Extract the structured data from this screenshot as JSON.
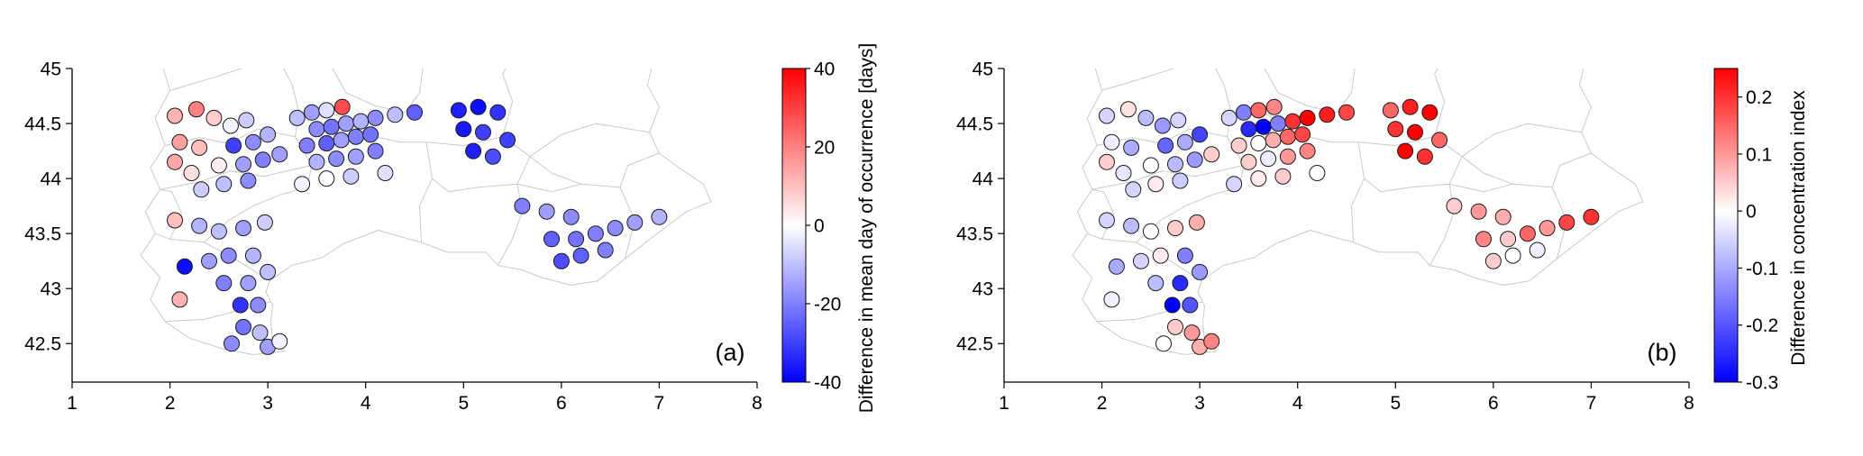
{
  "colors": {
    "negative": "#0000ff",
    "zero": "#ffffff",
    "positive": "#ff0000",
    "map_outline": "#c9c9c9",
    "axis": "#000000",
    "point_edge": "#1a1a1a"
  },
  "chart_data": {
    "type": "scatter",
    "title": "",
    "panels": [
      {
        "id": "a",
        "label": "(a)",
        "xlim": [
          1,
          8
        ],
        "ylim": [
          42.15,
          45.0
        ],
        "xticks": [
          "1",
          "2",
          "3",
          "4",
          "5",
          "6",
          "7",
          "8"
        ],
        "xtick_values": [
          1,
          2,
          3,
          4,
          5,
          6,
          7,
          8
        ],
        "yticks": [
          "42.5",
          "43",
          "43.5",
          "44",
          "44.5",
          "45"
        ],
        "ytick_values": [
          42.5,
          43,
          43.5,
          44,
          44.5,
          45
        ],
        "value_key": "a",
        "colorbar": {
          "label": "Difference in mean day of occurrence [days]",
          "tick_labels": [
            "-40",
            "-20",
            "0",
            "20",
            "40"
          ],
          "tick_values": [
            -40,
            -20,
            0,
            20,
            40
          ],
          "min": -40,
          "max": 40
        }
      },
      {
        "id": "b",
        "label": "(b)",
        "xlim": [
          1,
          8
        ],
        "ylim": [
          42.15,
          45.0
        ],
        "xticks": [
          "1",
          "2",
          "3",
          "4",
          "5",
          "6",
          "7",
          "8"
        ],
        "xtick_values": [
          1,
          2,
          3,
          4,
          5,
          6,
          7,
          8
        ],
        "yticks": [
          "42.5",
          "43",
          "43.5",
          "44",
          "44.5",
          "45"
        ],
        "ytick_values": [
          42.5,
          43,
          43.5,
          44,
          44.5,
          45
        ],
        "value_key": "b",
        "colorbar": {
          "label": "Difference in concentration index",
          "tick_labels": [
            "-0.3",
            "-0.2",
            "-0.1",
            "0",
            "0.1",
            "0.2"
          ],
          "tick_values": [
            -0.3,
            -0.2,
            -0.1,
            0,
            0.1,
            0.2
          ],
          "min": -0.3,
          "max": 0.25
        }
      }
    ],
    "stations": [
      {
        "lon": 2.05,
        "lat": 44.57,
        "a": 12,
        "b": -0.05
      },
      {
        "lon": 2.27,
        "lat": 44.63,
        "a": 20,
        "b": 0.03
      },
      {
        "lon": 2.45,
        "lat": 44.55,
        "a": 8,
        "b": -0.08
      },
      {
        "lon": 2.62,
        "lat": 44.48,
        "a": -2,
        "b": -0.12
      },
      {
        "lon": 2.78,
        "lat": 44.53,
        "a": -8,
        "b": -0.05
      },
      {
        "lon": 2.1,
        "lat": 44.33,
        "a": 15,
        "b": -0.02
      },
      {
        "lon": 2.3,
        "lat": 44.28,
        "a": 10,
        "b": -0.1
      },
      {
        "lon": 2.05,
        "lat": 44.15,
        "a": 14,
        "b": 0.05
      },
      {
        "lon": 2.22,
        "lat": 44.05,
        "a": 5,
        "b": -0.03
      },
      {
        "lon": 2.65,
        "lat": 44.3,
        "a": -30,
        "b": -0.18
      },
      {
        "lon": 2.85,
        "lat": 44.33,
        "a": -18,
        "b": -0.1
      },
      {
        "lon": 3.0,
        "lat": 44.4,
        "a": -12,
        "b": -0.22
      },
      {
        "lon": 2.5,
        "lat": 44.12,
        "a": 3,
        "b": 0.0
      },
      {
        "lon": 2.75,
        "lat": 44.13,
        "a": -15,
        "b": -0.08
      },
      {
        "lon": 2.95,
        "lat": 44.17,
        "a": -20,
        "b": -0.12
      },
      {
        "lon": 3.12,
        "lat": 44.22,
        "a": -15,
        "b": 0.05
      },
      {
        "lon": 2.32,
        "lat": 43.9,
        "a": -8,
        "b": -0.05
      },
      {
        "lon": 2.55,
        "lat": 43.95,
        "a": -10,
        "b": 0.02
      },
      {
        "lon": 2.8,
        "lat": 43.98,
        "a": -18,
        "b": -0.06
      },
      {
        "lon": 2.05,
        "lat": 43.62,
        "a": 10,
        "b": -0.05
      },
      {
        "lon": 2.3,
        "lat": 43.57,
        "a": -12,
        "b": -0.08
      },
      {
        "lon": 2.5,
        "lat": 43.52,
        "a": -10,
        "b": 0.0
      },
      {
        "lon": 2.75,
        "lat": 43.55,
        "a": -15,
        "b": 0.05
      },
      {
        "lon": 2.97,
        "lat": 43.6,
        "a": -8,
        "b": 0.08
      },
      {
        "lon": 2.15,
        "lat": 43.2,
        "a": -38,
        "b": -0.1
      },
      {
        "lon": 2.4,
        "lat": 43.25,
        "a": -15,
        "b": -0.05
      },
      {
        "lon": 2.6,
        "lat": 43.3,
        "a": -18,
        "b": 0.02
      },
      {
        "lon": 2.85,
        "lat": 43.3,
        "a": -12,
        "b": -0.15
      },
      {
        "lon": 2.1,
        "lat": 42.9,
        "a": 12,
        "b": -0.02
      },
      {
        "lon": 2.55,
        "lat": 43.05,
        "a": -20,
        "b": -0.08
      },
      {
        "lon": 2.8,
        "lat": 43.05,
        "a": -15,
        "b": -0.25
      },
      {
        "lon": 3.0,
        "lat": 43.15,
        "a": -10,
        "b": -0.12
      },
      {
        "lon": 2.72,
        "lat": 42.85,
        "a": -32,
        "b": -0.3
      },
      {
        "lon": 2.9,
        "lat": 42.85,
        "a": -18,
        "b": -0.2
      },
      {
        "lon": 2.75,
        "lat": 42.65,
        "a": -22,
        "b": 0.05
      },
      {
        "lon": 2.92,
        "lat": 42.6,
        "a": -10,
        "b": 0.1
      },
      {
        "lon": 3.0,
        "lat": 42.47,
        "a": -15,
        "b": 0.08
      },
      {
        "lon": 3.12,
        "lat": 42.52,
        "a": -2,
        "b": 0.12
      },
      {
        "lon": 2.63,
        "lat": 42.5,
        "a": -18,
        "b": 0.0
      },
      {
        "lon": 3.3,
        "lat": 44.55,
        "a": -10,
        "b": -0.05
      },
      {
        "lon": 3.45,
        "lat": 44.6,
        "a": -15,
        "b": -0.15
      },
      {
        "lon": 3.6,
        "lat": 44.62,
        "a": -5,
        "b": 0.15
      },
      {
        "lon": 3.76,
        "lat": 44.65,
        "a": 28,
        "b": 0.12
      },
      {
        "lon": 3.5,
        "lat": 44.45,
        "a": -18,
        "b": -0.25
      },
      {
        "lon": 3.65,
        "lat": 44.47,
        "a": -22,
        "b": -0.3
      },
      {
        "lon": 3.8,
        "lat": 44.5,
        "a": -15,
        "b": -0.15
      },
      {
        "lon": 3.95,
        "lat": 44.52,
        "a": -12,
        "b": 0.2
      },
      {
        "lon": 4.1,
        "lat": 44.55,
        "a": -18,
        "b": 0.25
      },
      {
        "lon": 4.3,
        "lat": 44.58,
        "a": -10,
        "b": 0.22
      },
      {
        "lon": 4.5,
        "lat": 44.6,
        "a": -25,
        "b": 0.18
      },
      {
        "lon": 3.4,
        "lat": 44.3,
        "a": -20,
        "b": 0.05
      },
      {
        "lon": 3.6,
        "lat": 44.32,
        "a": -25,
        "b": 0.0
      },
      {
        "lon": 3.75,
        "lat": 44.35,
        "a": -15,
        "b": 0.08
      },
      {
        "lon": 3.9,
        "lat": 44.38,
        "a": -20,
        "b": 0.15
      },
      {
        "lon": 4.05,
        "lat": 44.4,
        "a": -22,
        "b": 0.18
      },
      {
        "lon": 3.5,
        "lat": 44.15,
        "a": -12,
        "b": 0.05
      },
      {
        "lon": 3.7,
        "lat": 44.18,
        "a": -18,
        "b": -0.02
      },
      {
        "lon": 3.9,
        "lat": 44.2,
        "a": -15,
        "b": 0.1
      },
      {
        "lon": 4.1,
        "lat": 44.25,
        "a": -20,
        "b": 0.12
      },
      {
        "lon": 3.6,
        "lat": 44.0,
        "a": 0,
        "b": 0.02
      },
      {
        "lon": 3.85,
        "lat": 44.02,
        "a": -8,
        "b": 0.05
      },
      {
        "lon": 4.2,
        "lat": 44.05,
        "a": -5,
        "b": 0.0
      },
      {
        "lon": 3.35,
        "lat": 43.95,
        "a": -2,
        "b": -0.05
      },
      {
        "lon": 4.95,
        "lat": 44.62,
        "a": -35,
        "b": 0.15
      },
      {
        "lon": 5.15,
        "lat": 44.65,
        "a": -38,
        "b": 0.22
      },
      {
        "lon": 5.35,
        "lat": 44.6,
        "a": -32,
        "b": 0.25
      },
      {
        "lon": 5.0,
        "lat": 44.45,
        "a": -36,
        "b": 0.2
      },
      {
        "lon": 5.2,
        "lat": 44.42,
        "a": -30,
        "b": 0.28
      },
      {
        "lon": 5.1,
        "lat": 44.25,
        "a": -35,
        "b": 0.25
      },
      {
        "lon": 5.3,
        "lat": 44.2,
        "a": -28,
        "b": 0.2
      },
      {
        "lon": 5.45,
        "lat": 44.35,
        "a": -30,
        "b": 0.15
      },
      {
        "lon": 5.6,
        "lat": 43.75,
        "a": -20,
        "b": 0.05
      },
      {
        "lon": 5.85,
        "lat": 43.7,
        "a": -15,
        "b": 0.1
      },
      {
        "lon": 6.1,
        "lat": 43.65,
        "a": -18,
        "b": 0.08
      },
      {
        "lon": 5.9,
        "lat": 43.45,
        "a": -25,
        "b": 0.12
      },
      {
        "lon": 6.15,
        "lat": 43.45,
        "a": -22,
        "b": 0.05
      },
      {
        "lon": 6.35,
        "lat": 43.5,
        "a": -20,
        "b": 0.15
      },
      {
        "lon": 6.55,
        "lat": 43.55,
        "a": -18,
        "b": 0.1
      },
      {
        "lon": 6.75,
        "lat": 43.6,
        "a": -15,
        "b": 0.18
      },
      {
        "lon": 7.0,
        "lat": 43.65,
        "a": -12,
        "b": 0.2
      },
      {
        "lon": 6.2,
        "lat": 43.3,
        "a": -25,
        "b": 0.0
      },
      {
        "lon": 6.45,
        "lat": 43.35,
        "a": -20,
        "b": -0.02
      },
      {
        "lon": 6.0,
        "lat": 43.25,
        "a": -28,
        "b": 0.05
      }
    ]
  }
}
